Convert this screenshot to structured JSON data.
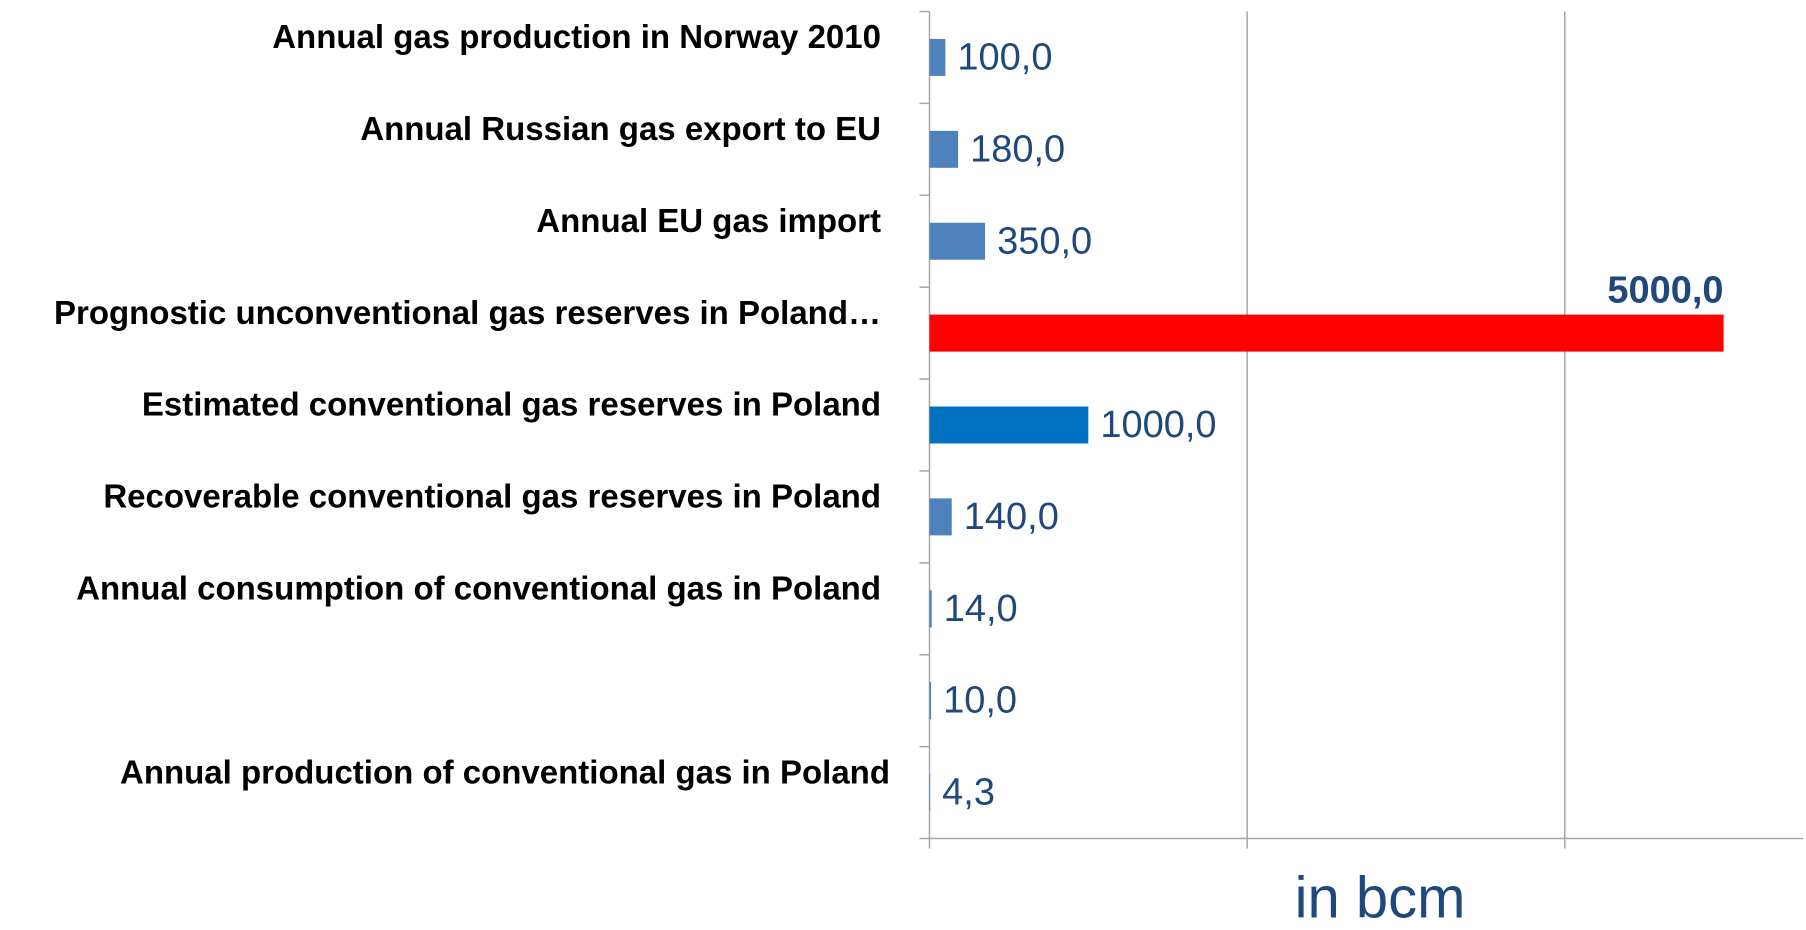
{
  "chart_data": {
    "type": "bar",
    "orientation": "horizontal",
    "categories": [
      "Annual gas production in Norway 2010",
      "Annual Russian gas export to EU",
      "Annual EU gas import",
      "Prognostic unconventional gas reserves in Poland…",
      "Estimated conventional gas reserves in Poland",
      "Recoverable conventional gas reserves in Poland",
      "Annual consumption of conventional gas in Poland",
      null,
      "Annual production of conventional gas in Poland"
    ],
    "values": [
      100,
      180,
      350,
      5000,
      1000,
      140,
      14,
      10,
      4.3
    ],
    "value_labels": [
      "100,0",
      "180,0",
      "350,0",
      "5000,0",
      "1000,0",
      "140,0",
      "14,0",
      "10,0",
      "4,3"
    ],
    "colors": [
      "#4f81bd",
      "#4f81bd",
      "#4f81bd",
      "#ff0000",
      "#0070c0",
      "#4f81bd",
      "#4f81bd",
      "#4f81bd",
      "#4f81bd"
    ],
    "xlabel": "in bcm",
    "xlim": [
      0,
      5500
    ],
    "xticks": [
      0,
      2000,
      4000
    ],
    "grid": true
  }
}
